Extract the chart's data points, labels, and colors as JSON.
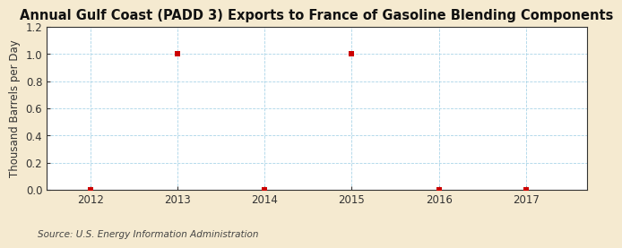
{
  "title": "Annual Gulf Coast (PADD 3) Exports to France of Gasoline Blending Components",
  "ylabel": "Thousand Barrels per Day",
  "source": "Source: U.S. Energy Information Administration",
  "x_data": [
    2012,
    2013,
    2014,
    2015,
    2016,
    2017
  ],
  "y_data": [
    0.0,
    1.0,
    0.0,
    1.0,
    0.0,
    0.0
  ],
  "xlim": [
    2011.5,
    2017.7
  ],
  "ylim": [
    0.0,
    1.2
  ],
  "yticks": [
    0.0,
    0.2,
    0.4,
    0.6,
    0.8,
    1.0,
    1.2
  ],
  "xticks": [
    2012,
    2013,
    2014,
    2015,
    2016,
    2017
  ],
  "marker_color": "#cc0000",
  "marker": "s",
  "marker_size": 4,
  "figure_background_color": "#f5ead0",
  "plot_background_color": "#ffffff",
  "grid_color": "#aad4e8",
  "title_fontsize": 10.5,
  "label_fontsize": 8.5,
  "tick_fontsize": 8.5,
  "source_fontsize": 7.5,
  "spine_color": "#333333"
}
